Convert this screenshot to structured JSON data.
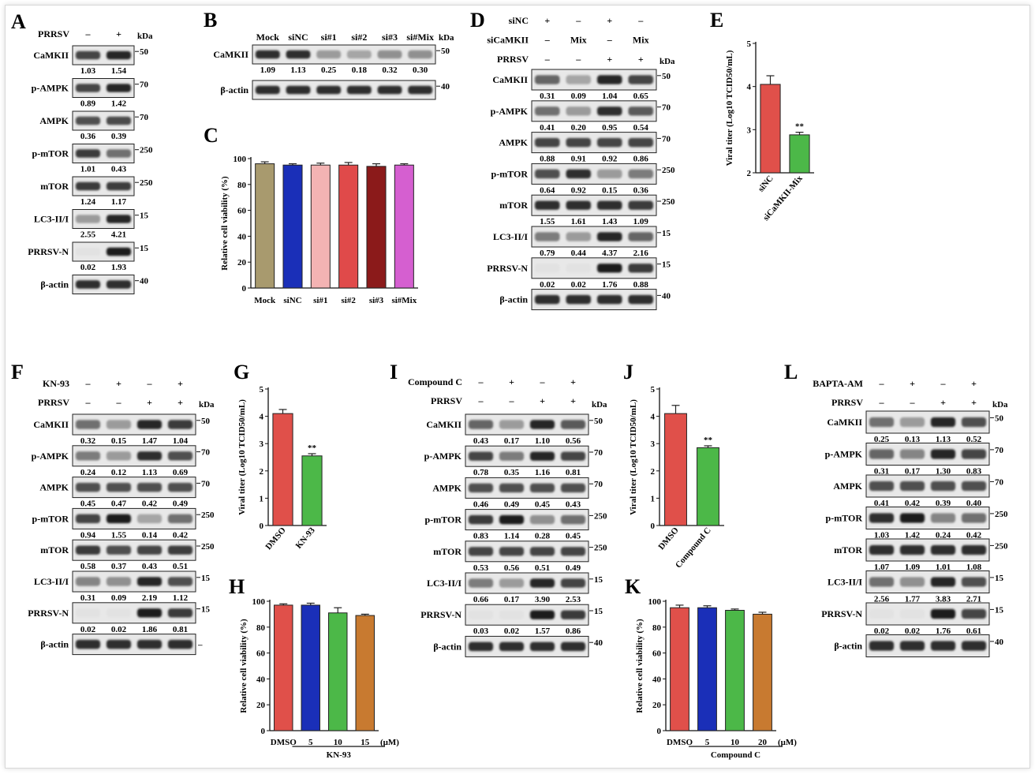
{
  "panels": {
    "A": "A",
    "B": "B",
    "C": "C",
    "D": "D",
    "E": "E",
    "F": "F",
    "G": "G",
    "H": "H",
    "I": "I",
    "J": "J",
    "K": "K",
    "L": "L"
  },
  "kda": "kDa",
  "blotA": {
    "header": [
      {
        "label": "PRRSV",
        "signs": [
          "–",
          "+"
        ]
      }
    ],
    "rows": [
      {
        "name": "CaMKII",
        "nums": [
          "1.03",
          "1.54"
        ],
        "mw": "50",
        "bands": [
          0.75,
          0.9
        ]
      },
      {
        "name": "p-AMPK",
        "nums": [
          "0.89",
          "1.42"
        ],
        "mw": "70",
        "bands": [
          0.75,
          0.9
        ]
      },
      {
        "name": "AMPK",
        "nums": [
          "0.36",
          "0.39"
        ],
        "mw": "70",
        "bands": [
          0.7,
          0.72
        ]
      },
      {
        "name": "p-mTOR",
        "nums": [
          "1.01",
          "0.43"
        ],
        "mw": "250",
        "bands": [
          0.8,
          0.55
        ]
      },
      {
        "name": "mTOR",
        "nums": [
          "1.24",
          "1.17"
        ],
        "mw": "250",
        "bands": [
          0.8,
          0.78
        ]
      },
      {
        "name": "LC3-II/I",
        "nums": [
          "2.55",
          "4.21"
        ],
        "mw": "15",
        "bands": [
          0.35,
          0.9
        ]
      },
      {
        "name": "PRRSV-N",
        "nums": [
          "0.02",
          "1.93"
        ],
        "mw": "15",
        "bands": [
          0.02,
          0.95
        ]
      },
      {
        "name": "β-actin",
        "nums": [],
        "mw": "40",
        "bands": [
          0.85,
          0.85
        ]
      }
    ]
  },
  "blotB": {
    "lanes": [
      "Mock",
      "siNC",
      "si#1",
      "si#2",
      "si#3",
      "si#Mix"
    ],
    "rows": [
      {
        "name": "CaMKII",
        "nums": [
          "1.09",
          "1.13",
          "0.25",
          "0.18",
          "0.32",
          "0.30"
        ],
        "mw": "50",
        "bands": [
          0.85,
          0.85,
          0.35,
          0.3,
          0.4,
          0.4
        ]
      },
      {
        "name": "β-actin",
        "nums": [],
        "mw": "40",
        "bands": [
          0.85,
          0.85,
          0.85,
          0.85,
          0.85,
          0.85
        ]
      }
    ]
  },
  "blotD": {
    "header": [
      {
        "label": "siNC",
        "signs": [
          "+",
          "–",
          "+",
          "–"
        ]
      },
      {
        "label": "siCaMKII",
        "signs": [
          "–",
          "Mix",
          "–",
          "Mix"
        ]
      },
      {
        "label": "PRRSV",
        "signs": [
          "–",
          "–",
          "+",
          "+"
        ]
      }
    ],
    "rows": [
      {
        "name": "CaMKII",
        "nums": [
          "0.31",
          "0.09",
          "1.04",
          "0.65"
        ],
        "mw": "50",
        "bands": [
          0.6,
          0.3,
          0.9,
          0.75
        ]
      },
      {
        "name": "p-AMPK",
        "nums": [
          "0.41",
          "0.20",
          "0.95",
          "0.54"
        ],
        "mw": "70",
        "bands": [
          0.55,
          0.35,
          0.85,
          0.65
        ]
      },
      {
        "name": "AMPK",
        "nums": [
          "0.88",
          "0.91",
          "0.92",
          "0.86"
        ],
        "mw": "70",
        "bands": [
          0.75,
          0.75,
          0.75,
          0.75
        ]
      },
      {
        "name": "p-mTOR",
        "nums": [
          "0.64",
          "0.92",
          "0.15",
          "0.36"
        ],
        "mw": "250",
        "bands": [
          0.7,
          0.85,
          0.35,
          0.5
        ]
      },
      {
        "name": "mTOR",
        "nums": [
          "1.55",
          "1.61",
          "1.43",
          "1.09"
        ],
        "mw": "250",
        "bands": [
          0.85,
          0.85,
          0.85,
          0.8
        ]
      },
      {
        "name": "LC3-II/I",
        "nums": [
          "0.79",
          "0.44",
          "4.37",
          "2.16"
        ],
        "mw": "15",
        "bands": [
          0.5,
          0.35,
          0.9,
          0.6
        ]
      },
      {
        "name": "PRRSV-N",
        "nums": [
          "0.02",
          "0.02",
          "1.76",
          "0.88"
        ],
        "mw": "15",
        "bands": [
          0.02,
          0.02,
          0.95,
          0.8
        ]
      },
      {
        "name": "β-actin",
        "nums": [],
        "mw": "40",
        "bands": [
          0.85,
          0.85,
          0.85,
          0.85
        ]
      }
    ]
  },
  "blotF": {
    "header": [
      {
        "label": "KN-93",
        "signs": [
          "–",
          "+",
          "–",
          "+"
        ]
      },
      {
        "label": "PRRSV",
        "signs": [
          "–",
          "–",
          "+",
          "+"
        ]
      }
    ],
    "rows": [
      {
        "name": "CaMKII",
        "nums": [
          "0.32",
          "0.15",
          "1.47",
          "1.04"
        ],
        "mw": "50",
        "bands": [
          0.55,
          0.35,
          0.9,
          0.8
        ]
      },
      {
        "name": "p-AMPK",
        "nums": [
          "0.24",
          "0.12",
          "1.13",
          "0.69"
        ],
        "mw": "70",
        "bands": [
          0.5,
          0.35,
          0.85,
          0.7
        ]
      },
      {
        "name": "AMPK",
        "nums": [
          "0.45",
          "0.47",
          "0.42",
          "0.49"
        ],
        "mw": "70",
        "bands": [
          0.7,
          0.7,
          0.7,
          0.7
        ]
      },
      {
        "name": "p-mTOR",
        "nums": [
          "0.94",
          "1.55",
          "0.14",
          "0.42"
        ],
        "mw": "250",
        "bands": [
          0.75,
          0.95,
          0.3,
          0.55
        ]
      },
      {
        "name": "mTOR",
        "nums": [
          "0.58",
          "0.37",
          "0.43",
          "0.51"
        ],
        "mw": "250",
        "bands": [
          0.8,
          0.7,
          0.75,
          0.78
        ]
      },
      {
        "name": "LC3-II/I",
        "nums": [
          "0.31",
          "0.09",
          "2.19",
          "1.12"
        ],
        "mw": "15",
        "bands": [
          0.45,
          0.4,
          0.9,
          0.7
        ]
      },
      {
        "name": "PRRSV-N",
        "nums": [
          "0.02",
          "0.02",
          "1.86",
          "0.81"
        ],
        "mw": "15",
        "bands": [
          0.02,
          0.02,
          0.95,
          0.8
        ]
      },
      {
        "name": "β-actin",
        "nums": [],
        "mw": "",
        "bands": [
          0.85,
          0.85,
          0.85,
          0.85
        ]
      }
    ]
  },
  "blotI": {
    "header": [
      {
        "label": "Compound C",
        "signs": [
          "–",
          "+",
          "–",
          "+"
        ]
      },
      {
        "label": "PRRSV",
        "signs": [
          "–",
          "–",
          "+",
          "+"
        ]
      }
    ],
    "rows": [
      {
        "name": "CaMKII",
        "nums": [
          "0.43",
          "0.17",
          "1.10",
          "0.56"
        ],
        "mw": "50",
        "bands": [
          0.6,
          0.35,
          0.9,
          0.65
        ]
      },
      {
        "name": "p-AMPK",
        "nums": [
          "0.78",
          "0.35",
          "1.16",
          "0.81"
        ],
        "mw": "70",
        "bands": [
          0.75,
          0.5,
          0.9,
          0.75
        ]
      },
      {
        "name": "AMPK",
        "nums": [
          "0.46",
          "0.49",
          "0.45",
          "0.43"
        ],
        "mw": "70",
        "bands": [
          0.7,
          0.7,
          0.7,
          0.7
        ]
      },
      {
        "name": "p-mTOR",
        "nums": [
          "0.83",
          "1.14",
          "0.28",
          "0.45"
        ],
        "mw": "250",
        "bands": [
          0.8,
          0.95,
          0.4,
          0.55
        ]
      },
      {
        "name": "mTOR",
        "nums": [
          "0.53",
          "0.56",
          "0.51",
          "0.49"
        ],
        "mw": "250",
        "bands": [
          0.75,
          0.75,
          0.75,
          0.75
        ]
      },
      {
        "name": "LC3-II/I",
        "nums": [
          "0.66",
          "0.17",
          "3.90",
          "2.53"
        ],
        "mw": "15",
        "bands": [
          0.5,
          0.35,
          0.9,
          0.75
        ]
      },
      {
        "name": "PRRSV-N",
        "nums": [
          "0.03",
          "0.02",
          "1.57",
          "0.86"
        ],
        "mw": "15",
        "bands": [
          0.02,
          0.02,
          0.95,
          0.8
        ]
      },
      {
        "name": "β-actin",
        "nums": [],
        "mw": "40",
        "bands": [
          0.85,
          0.85,
          0.85,
          0.85
        ]
      }
    ]
  },
  "blotL": {
    "header": [
      {
        "label": "BAPTA-AM",
        "signs": [
          "–",
          "+",
          "–",
          "+"
        ]
      },
      {
        "label": "PRRSV",
        "signs": [
          "–",
          "–",
          "+",
          "+"
        ]
      }
    ],
    "rows": [
      {
        "name": "CaMKII",
        "nums": [
          "0.25",
          "0.13",
          "1.13",
          "0.52"
        ],
        "mw": "50",
        "bands": [
          0.55,
          0.35,
          0.9,
          0.7
        ]
      },
      {
        "name": "p-AMPK",
        "nums": [
          "0.31",
          "0.17",
          "1.30",
          "0.83"
        ],
        "mw": "70",
        "bands": [
          0.6,
          0.45,
          0.9,
          0.75
        ]
      },
      {
        "name": "AMPK",
        "nums": [
          "0.41",
          "0.42",
          "0.39",
          "0.40"
        ],
        "mw": "70",
        "bands": [
          0.7,
          0.7,
          0.7,
          0.7
        ]
      },
      {
        "name": "p-mTOR",
        "nums": [
          "1.03",
          "1.42",
          "0.24",
          "0.42"
        ],
        "mw": "250",
        "bands": [
          0.85,
          0.95,
          0.45,
          0.55
        ]
      },
      {
        "name": "mTOR",
        "nums": [
          "1.07",
          "1.09",
          "1.01",
          "1.08"
        ],
        "mw": "250",
        "bands": [
          0.85,
          0.85,
          0.85,
          0.85
        ]
      },
      {
        "name": "LC3-II/I",
        "nums": [
          "2.56",
          "1.77",
          "3.83",
          "2.71"
        ],
        "mw": "15",
        "bands": [
          0.55,
          0.4,
          0.9,
          0.7
        ]
      },
      {
        "name": "PRRSV-N",
        "nums": [
          "0.02",
          "0.02",
          "1.76",
          "0.61"
        ],
        "mw": "15",
        "bands": [
          0.02,
          0.02,
          0.95,
          0.75
        ]
      },
      {
        "name": "β-actin",
        "nums": [],
        "mw": "40",
        "bands": [
          0.85,
          0.85,
          0.85,
          0.85
        ]
      }
    ]
  },
  "chart_data": [
    {
      "id": "C",
      "type": "bar",
      "categories": [
        "Mock",
        "siNC",
        "si#1",
        "si#2",
        "si#3",
        "si#Mix"
      ],
      "values": [
        96,
        95,
        95,
        95,
        94,
        95
      ],
      "errors": [
        1.5,
        1,
        1.5,
        2,
        2,
        1
      ],
      "colors": [
        "#a89a6e",
        "#1a2fb8",
        "#f3b3b3",
        "#e04a4a",
        "#8b1a1a",
        "#d55fd0"
      ],
      "ylabel": "Relative cell viability (%)",
      "ylim": [
        0,
        100
      ],
      "yticks": [
        0,
        20,
        40,
        60,
        80,
        100
      ]
    },
    {
      "id": "E",
      "type": "bar",
      "categories": [
        "siNC",
        "siCaMKII-Mix"
      ],
      "values": [
        4.05,
        2.88
      ],
      "errors": [
        0.2,
        0.06
      ],
      "colors": [
        "#e0504a",
        "#4cb848"
      ],
      "ylabel": "Viral titer (Log10 TCID50/mL)",
      "ylim": [
        2,
        5
      ],
      "yticks": [
        2,
        3,
        4,
        5
      ],
      "annotations": [
        {
          "category": "siCaMKII-Mix",
          "text": "**"
        }
      ]
    },
    {
      "id": "G",
      "type": "bar",
      "categories": [
        "DMSO",
        "KN-93"
      ],
      "values": [
        4.1,
        2.55
      ],
      "errors": [
        0.15,
        0.08
      ],
      "colors": [
        "#e0504a",
        "#4cb848"
      ],
      "ylabel": "Viral titer (Log10 TCID50/mL)",
      "ylim": [
        0,
        5
      ],
      "yticks": [
        0,
        1,
        2,
        3,
        4,
        5
      ],
      "annotations": [
        {
          "category": "KN-93",
          "text": "**"
        }
      ]
    },
    {
      "id": "H",
      "type": "bar",
      "categories": [
        "DMSO",
        "5",
        "10",
        "15"
      ],
      "unit": "(μM)",
      "group": "KN-93",
      "values": [
        97,
        97,
        91,
        89
      ],
      "errors": [
        1,
        1.5,
        4,
        1
      ],
      "colors": [
        "#e0504a",
        "#1a2fb8",
        "#4cb848",
        "#c87a30"
      ],
      "ylabel": "Relative cell viability (%)",
      "ylim": [
        0,
        100
      ],
      "yticks": [
        0,
        20,
        40,
        60,
        80,
        100
      ]
    },
    {
      "id": "J",
      "type": "bar",
      "categories": [
        "DMSO",
        "Compound C"
      ],
      "values": [
        4.1,
        2.85
      ],
      "errors": [
        0.3,
        0.07
      ],
      "colors": [
        "#e0504a",
        "#4cb848"
      ],
      "ylabel": "Viral titer (Log10 TCID50/mL)",
      "ylim": [
        0,
        5
      ],
      "yticks": [
        0,
        1,
        2,
        3,
        4,
        5
      ],
      "annotations": [
        {
          "category": "Compound C",
          "text": "**"
        }
      ]
    },
    {
      "id": "K",
      "type": "bar",
      "categories": [
        "DMSO",
        "5",
        "10",
        "20"
      ],
      "unit": "(μM)",
      "group": "Compound C",
      "values": [
        95,
        95,
        93,
        90
      ],
      "errors": [
        2,
        1.5,
        1,
        1.5
      ],
      "colors": [
        "#e0504a",
        "#1a2fb8",
        "#4cb848",
        "#c87a30"
      ],
      "ylabel": "Relative cell viability (%)",
      "ylim": [
        0,
        100
      ],
      "yticks": [
        0,
        20,
        40,
        60,
        80,
        100
      ]
    }
  ]
}
